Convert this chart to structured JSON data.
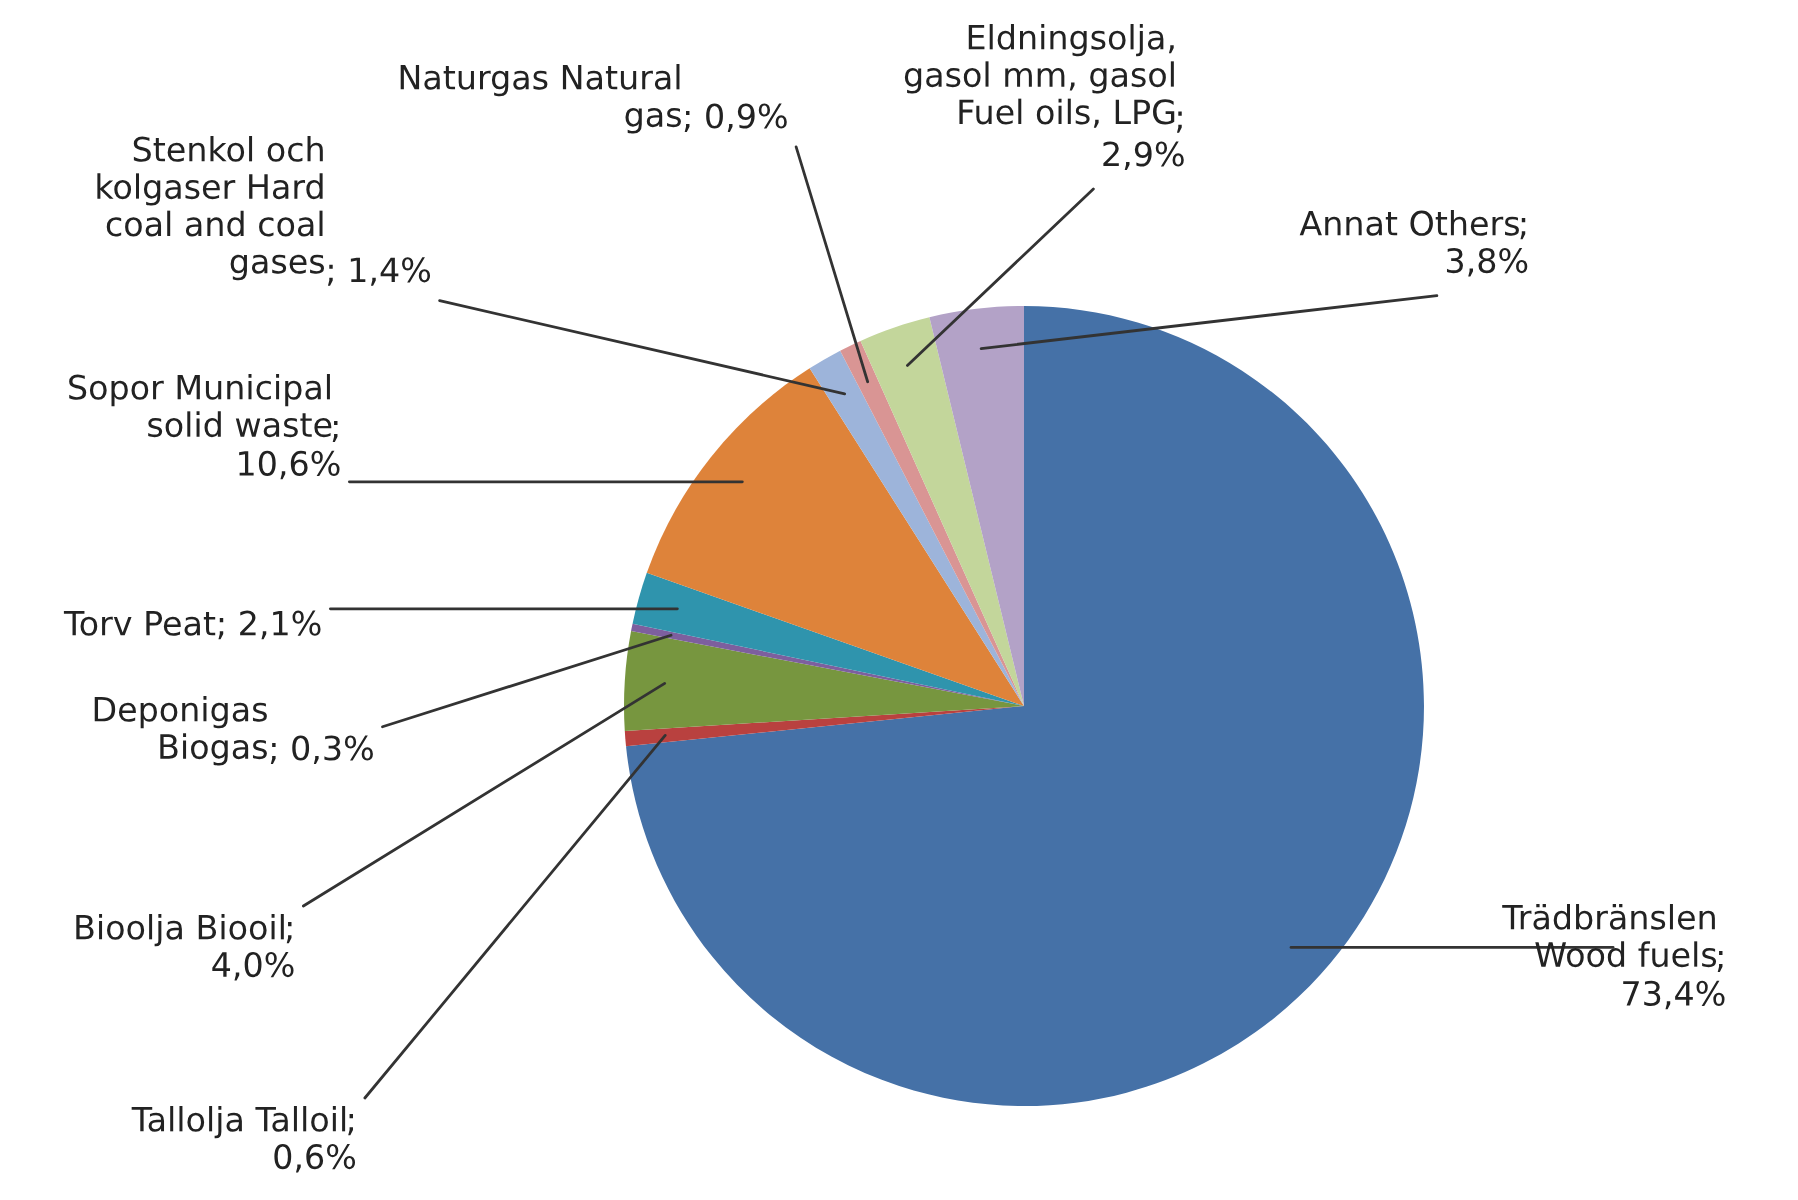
{
  "chart_data": {
    "type": "pie",
    "categories": [
      "Trädbränslen\nWood fuels",
      "Tallolja Talloil",
      "Bioolja Biooil",
      "Deponigas\nBiogas",
      "Torv Peat",
      "Sopor Municipal\nsolid waste",
      "Stenkol och\nkolgaser Hard\ncoal and coal\ngases",
      "Naturgas Natural\ngas",
      "Eldningsolja,\ngasol mm, gasol\nFuel oils, LPG",
      "Annat Others"
    ],
    "values": [
      73.4,
      0.6,
      4.0,
      0.3,
      2.1,
      10.6,
      1.4,
      0.9,
      2.9,
      3.8
    ],
    "value_labels": [
      ";\n73,4%",
      ";\n0,6%",
      ";\n4,0%",
      "; 0,3%",
      "; 2,1%",
      ";\n10,6%",
      "; 1,4%",
      "; 0,9%",
      ";\n2,9%",
      ";\n3,8%"
    ],
    "colors": [
      "#4571a7",
      "#b9413f",
      "#77963f",
      "#7d5f9e",
      "#2f94ad",
      "#de833a",
      "#9db4da",
      "#d99594",
      "#c3d69b",
      "#b3a2c7"
    ]
  }
}
